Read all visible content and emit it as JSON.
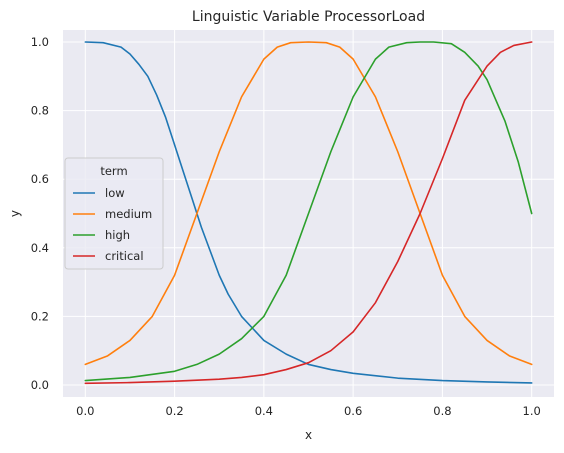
{
  "chart_data": {
    "type": "line",
    "title": "Linguistic Variable ProcessorLoad",
    "xlabel": "x",
    "ylabel": "y",
    "xlim": [
      -0.05,
      1.05
    ],
    "ylim": [
      -0.035,
      1.035
    ],
    "xticks": [
      0.0,
      0.2,
      0.4,
      0.6,
      0.8,
      1.0
    ],
    "xtick_labels": [
      "0.0",
      "0.2",
      "0.4",
      "0.6",
      "0.8",
      "1.0"
    ],
    "yticks": [
      0.0,
      0.2,
      0.4,
      0.6,
      0.8,
      1.0
    ],
    "ytick_labels": [
      "0.0",
      "0.2",
      "0.4",
      "0.6",
      "0.8",
      "1.0"
    ],
    "grid": true,
    "legend": {
      "title": "term",
      "placement": "center-left"
    },
    "series": [
      {
        "name": "low",
        "color": "#1f77b4",
        "x": [
          0.0,
          0.04,
          0.08,
          0.1,
          0.12,
          0.14,
          0.16,
          0.18,
          0.2,
          0.22,
          0.24,
          0.26,
          0.28,
          0.3,
          0.32,
          0.35,
          0.4,
          0.45,
          0.5,
          0.55,
          0.6,
          0.7,
          0.8,
          0.9,
          1.0
        ],
        "values": [
          1.0,
          0.998,
          0.985,
          0.965,
          0.935,
          0.9,
          0.845,
          0.78,
          0.7,
          0.62,
          0.54,
          0.46,
          0.39,
          0.32,
          0.265,
          0.2,
          0.13,
          0.09,
          0.06,
          0.045,
          0.034,
          0.02,
          0.013,
          0.009,
          0.006
        ]
      },
      {
        "name": "medium",
        "color": "#ff7f0e",
        "x": [
          0.0,
          0.05,
          0.1,
          0.15,
          0.2,
          0.25,
          0.3,
          0.35,
          0.4,
          0.43,
          0.46,
          0.5,
          0.54,
          0.57,
          0.6,
          0.65,
          0.7,
          0.75,
          0.8,
          0.85,
          0.9,
          0.95,
          1.0
        ],
        "values": [
          0.06,
          0.085,
          0.13,
          0.2,
          0.32,
          0.5,
          0.68,
          0.84,
          0.95,
          0.985,
          0.998,
          1.0,
          0.998,
          0.985,
          0.95,
          0.84,
          0.68,
          0.5,
          0.32,
          0.2,
          0.13,
          0.085,
          0.06
        ]
      },
      {
        "name": "high",
        "color": "#2ca02c",
        "x": [
          0.0,
          0.1,
          0.2,
          0.25,
          0.3,
          0.35,
          0.4,
          0.45,
          0.5,
          0.55,
          0.6,
          0.65,
          0.68,
          0.72,
          0.75,
          0.78,
          0.82,
          0.85,
          0.88,
          0.9,
          0.94,
          0.97,
          1.0
        ],
        "values": [
          0.013,
          0.022,
          0.04,
          0.06,
          0.09,
          0.135,
          0.2,
          0.32,
          0.5,
          0.68,
          0.84,
          0.95,
          0.985,
          0.998,
          1.0,
          1.0,
          0.995,
          0.97,
          0.93,
          0.89,
          0.77,
          0.65,
          0.5
        ]
      },
      {
        "name": "critical",
        "color": "#d62728",
        "x": [
          0.0,
          0.1,
          0.2,
          0.3,
          0.35,
          0.4,
          0.45,
          0.5,
          0.55,
          0.6,
          0.65,
          0.7,
          0.75,
          0.8,
          0.85,
          0.9,
          0.93,
          0.96,
          1.0
        ],
        "values": [
          0.005,
          0.007,
          0.011,
          0.017,
          0.022,
          0.03,
          0.045,
          0.065,
          0.1,
          0.155,
          0.24,
          0.36,
          0.5,
          0.66,
          0.83,
          0.93,
          0.97,
          0.99,
          1.0
        ]
      }
    ]
  }
}
